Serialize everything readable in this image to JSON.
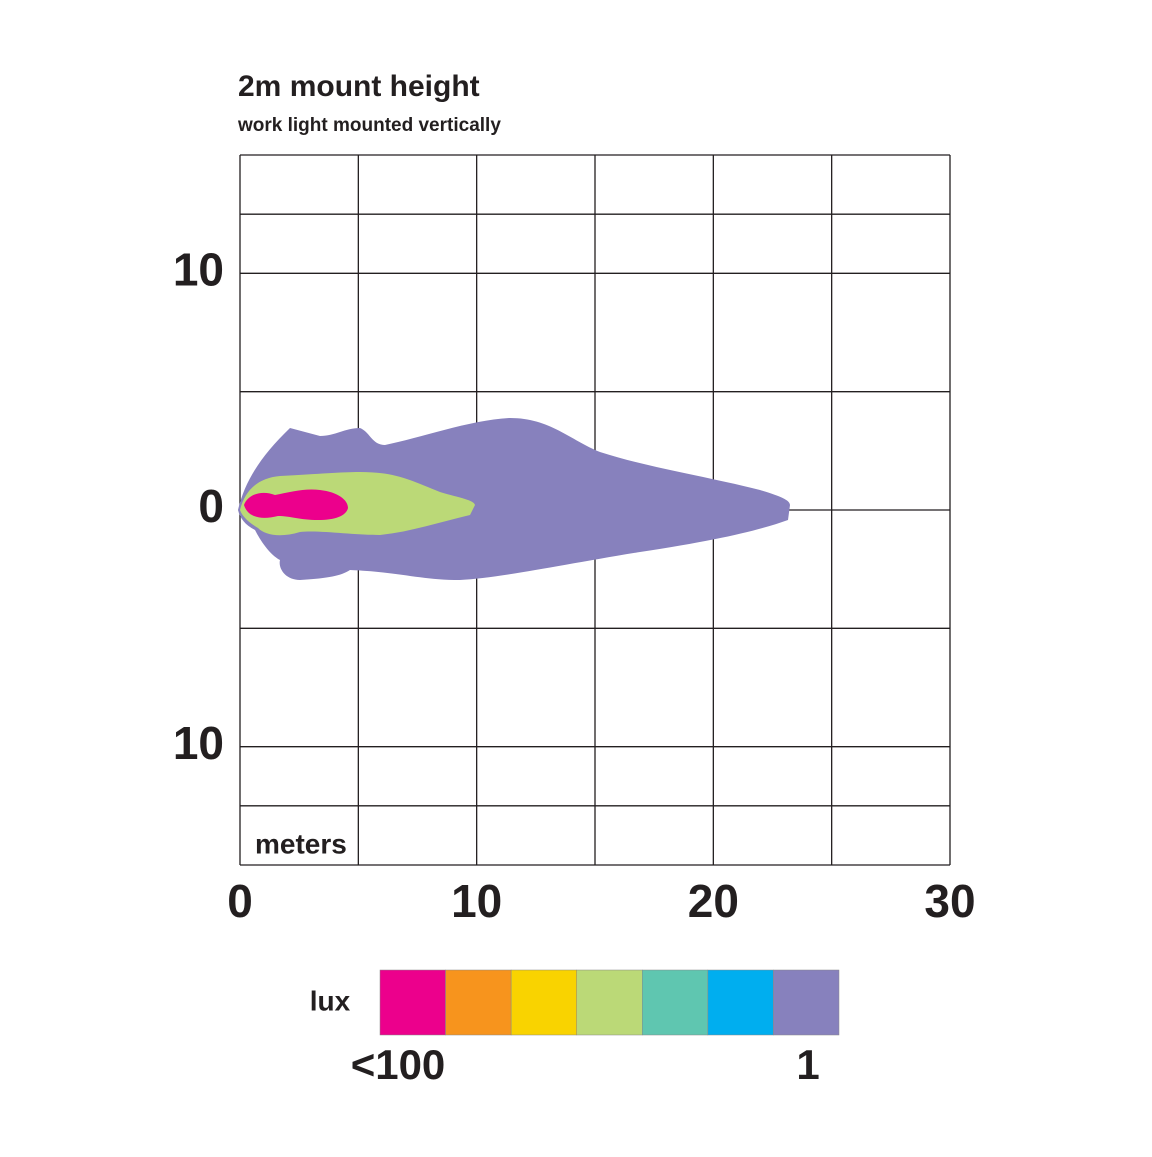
{
  "chart_data": {
    "type": "isolux",
    "title": "2m mount height",
    "subtitle": "work light mounted vertically",
    "x_label": "meters",
    "xlim": [
      0,
      30
    ],
    "xticks": [
      0,
      10,
      20,
      30
    ],
    "ylim": [
      -15,
      15
    ],
    "yticks": [
      {
        "value": -10,
        "label": "10"
      },
      0,
      10
    ],
    "grid": true,
    "legend": {
      "title": "lux",
      "colors": [
        "#ec008c",
        "#f7941d",
        "#f9d300",
        "#bbd977",
        "#5fc6b0",
        "#00aeef",
        "#8781bd"
      ],
      "labels": [
        "<100",
        "1"
      ]
    }
  }
}
